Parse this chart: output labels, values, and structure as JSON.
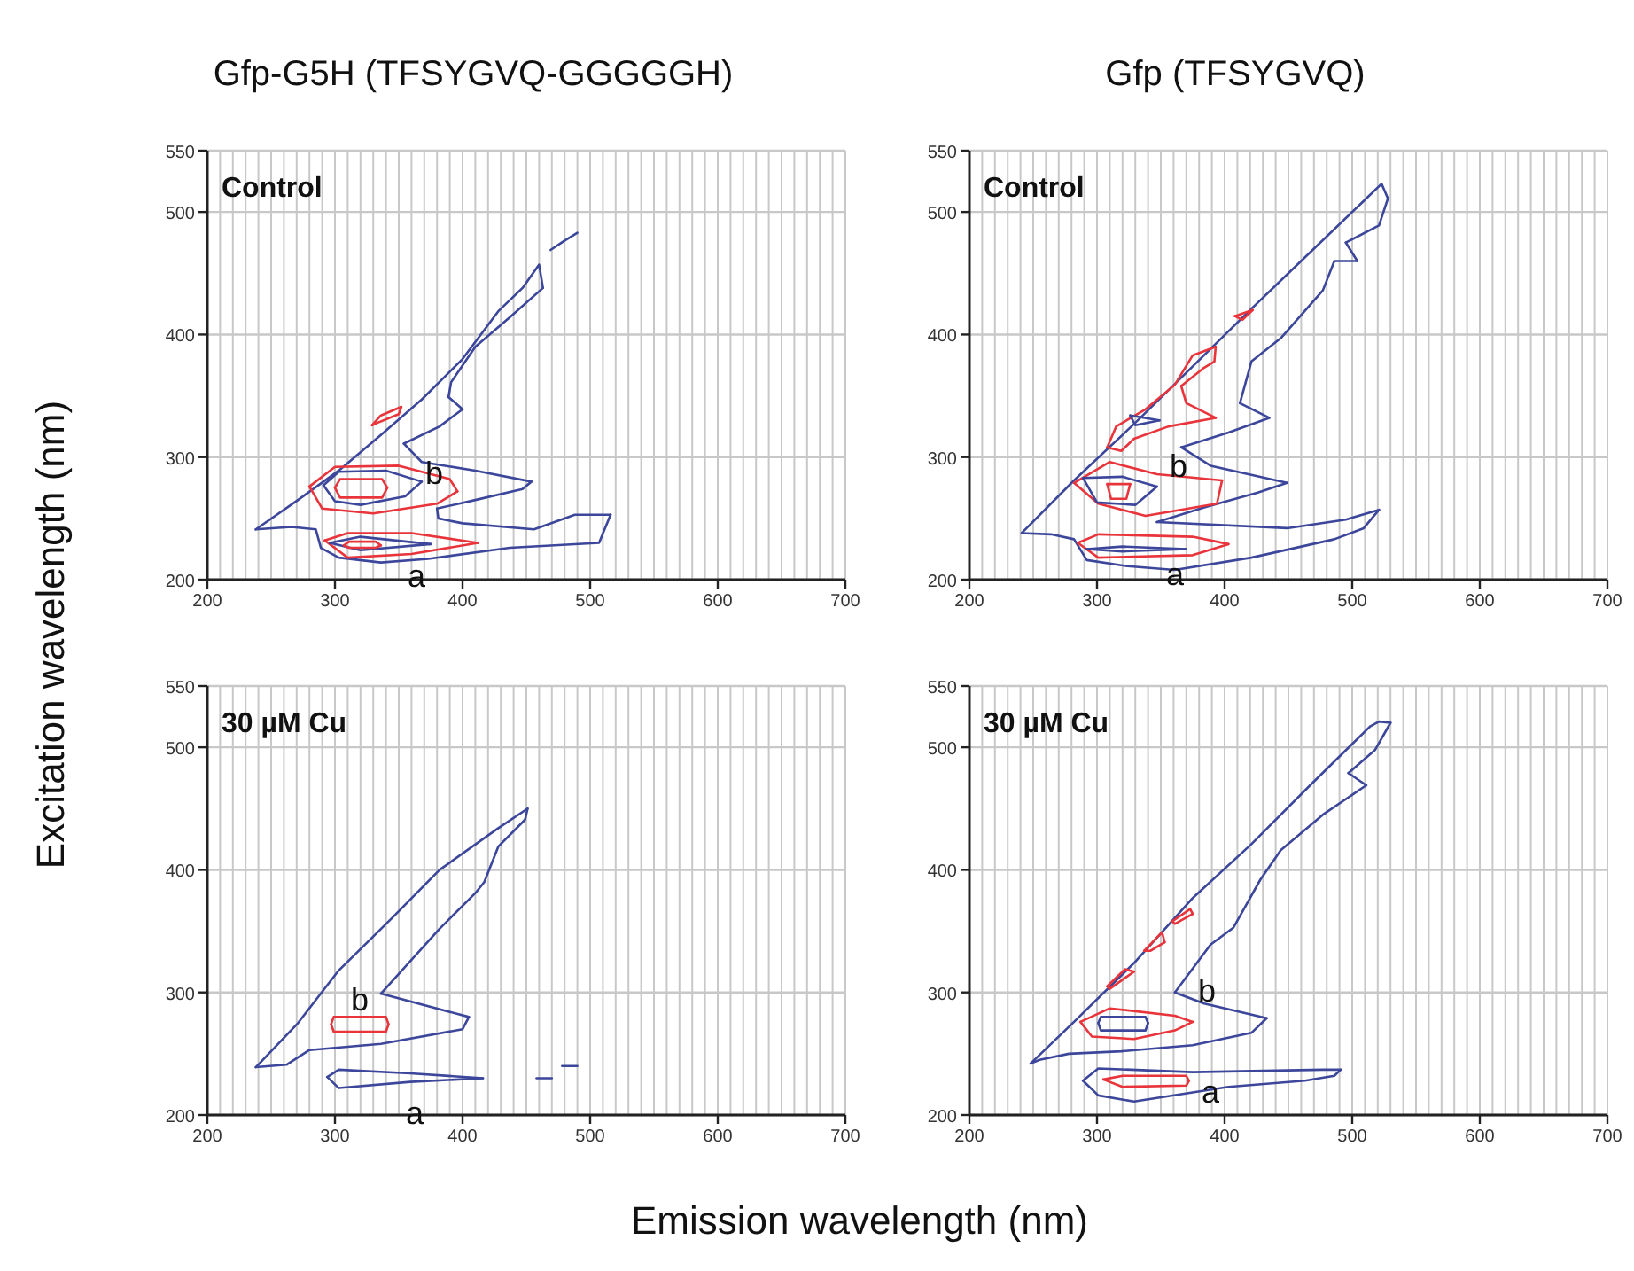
{
  "chart_data": [
    {
      "type": "line",
      "title": "Gfp-G5H (TFSYGVQ-GGGGGH)",
      "ylabel": "Excitation wavelength (nm)",
      "xlim": [
        200,
        700
      ],
      "ylim": [
        200,
        550
      ],
      "grid": true,
      "xticks": [
        200,
        {
          "value": 210,
          "label": null
        },
        {
          "value": 220,
          "label": null
        },
        {
          "value": 230,
          "label": null
        },
        {
          "value": 240,
          "label": null
        },
        {
          "value": 250,
          "label": null
        },
        {
          "value": 260,
          "label": null
        },
        {
          "value": 270,
          "label": null
        },
        {
          "value": 280,
          "label": null
        },
        {
          "value": 290,
          "label": null
        },
        300,
        {
          "value": 310,
          "label": null
        },
        {
          "value": 320,
          "label": null
        },
        {
          "value": 330,
          "label": null
        },
        {
          "value": 340,
          "label": null
        },
        {
          "value": 350,
          "label": null
        },
        {
          "value": 360,
          "label": null
        },
        {
          "value": 370,
          "label": null
        },
        {
          "value": 380,
          "label": null
        },
        {
          "value": 390,
          "label": null
        },
        400,
        {
          "value": 410,
          "label": null
        },
        {
          "value": 420,
          "label": null
        },
        {
          "value": 430,
          "label": null
        },
        {
          "value": 440,
          "label": null
        },
        {
          "value": 450,
          "label": null
        },
        {
          "value": 460,
          "label": null
        },
        {
          "value": 470,
          "label": null
        },
        {
          "value": 480,
          "label": null
        },
        {
          "value": 490,
          "label": null
        },
        500,
        {
          "value": 510,
          "label": null
        },
        {
          "value": 520,
          "label": null
        },
        {
          "value": 530,
          "label": null
        },
        {
          "value": 540,
          "label": null
        },
        {
          "value": 550,
          "label": null
        },
        {
          "value": 560,
          "label": null
        },
        {
          "value": 570,
          "label": null
        },
        {
          "value": 580,
          "label": null
        },
        {
          "value": 590,
          "label": null
        },
        600,
        {
          "value": 610,
          "label": null
        },
        {
          "value": 620,
          "label": null
        },
        {
          "value": 630,
          "label": null
        },
        {
          "value": 640,
          "label": null
        },
        {
          "value": 650,
          "label": null
        },
        {
          "value": 660,
          "label": null
        },
        {
          "value": 670,
          "label": null
        },
        {
          "value": 680,
          "label": null
        },
        {
          "value": 690,
          "label": null
        },
        700
      ],
      "yticks": [
        200,
        300,
        400,
        500,
        550
      ],
      "annotations": [
        "Control",
        "b",
        "a"
      ],
      "series": [
        {
          "color": "#3c469b",
          "x": [
            238,
            271,
            303,
            336,
            368,
            400,
            428,
            447,
            460,
            463
          ],
          "values": [
            241,
            265,
            289,
            318,
            347,
            380,
            419,
            438,
            457,
            438
          ]
        },
        {
          "color": "#3c469b",
          "x": [
            463,
            437,
            410,
            391,
            389
          ],
          "values": [
            438,
            414,
            390,
            361,
            349
          ]
        },
        {
          "color": "#3c469b",
          "x": [
            389,
            400
          ],
          "values": [
            349,
            339
          ]
        },
        {
          "color": "#3c469b",
          "x": [
            400,
            382,
            354
          ],
          "values": [
            339,
            325,
            311
          ]
        },
        {
          "color": "#3c469b",
          "x": [
            354,
            368,
            410,
            454
          ],
          "values": [
            311,
            296,
            289,
            280
          ]
        },
        {
          "color": "#3c469b",
          "x": [
            454,
            447,
            410,
            380
          ],
          "values": [
            280,
            274,
            265,
            258
          ]
        },
        {
          "color": "#3c469b",
          "x": [
            380,
            381,
            400,
            456,
            488,
            516
          ],
          "values": [
            258,
            250,
            246,
            241,
            253,
            253
          ]
        },
        {
          "color": "#3c469b",
          "x": [
            516,
            507,
            437,
            373,
            336,
            303,
            289,
            285,
            266,
            238
          ],
          "values": [
            253,
            230,
            226,
            217,
            214,
            218,
            226,
            241,
            243,
            241
          ]
        },
        {
          "color": "#e8343a",
          "x": [
            329,
            336,
            352
          ],
          "values": [
            326,
            334,
            341
          ]
        },
        {
          "color": "#e8343a",
          "x": [
            352,
            350,
            331,
            329
          ],
          "values": [
            341,
            335,
            327,
            326
          ]
        },
        {
          "color": "#e8343a",
          "x": [
            280,
            300,
            350,
            390,
            396
          ],
          "values": [
            276,
            292,
            293,
            282,
            272
          ]
        },
        {
          "color": "#e8343a",
          "x": [
            396,
            380,
            330,
            290,
            280
          ],
          "values": [
            272,
            262,
            254,
            258,
            276
          ]
        },
        {
          "color": "#3c469b",
          "x": [
            291,
            303,
            340,
            368
          ],
          "values": [
            277,
            288,
            289,
            280
          ]
        },
        {
          "color": "#3c469b",
          "x": [
            368,
            355,
            320,
            300,
            291
          ],
          "values": [
            280,
            268,
            261,
            264,
            277
          ]
        },
        {
          "color": "#e8343a",
          "x": [
            300,
            304,
            337,
            341
          ],
          "values": [
            275,
            282,
            282,
            275
          ]
        },
        {
          "color": "#e8343a",
          "x": [
            341,
            337,
            304,
            300
          ],
          "values": [
            275,
            267,
            267,
            275
          ]
        },
        {
          "color": "#e8343a",
          "x": [
            292,
            310,
            360,
            412
          ],
          "values": [
            232,
            238,
            238,
            230
          ]
        },
        {
          "color": "#e8343a",
          "x": [
            412,
            360,
            310,
            292
          ],
          "values": [
            230,
            221,
            218,
            232
          ]
        },
        {
          "color": "#3c469b",
          "x": [
            296,
            320,
            375
          ],
          "values": [
            230,
            235,
            229
          ]
        },
        {
          "color": "#3c469b",
          "x": [
            375,
            320,
            296
          ],
          "values": [
            229,
            224,
            230
          ]
        },
        {
          "color": "#e8343a",
          "x": [
            307,
            311,
            332,
            336
          ],
          "values": [
            228,
            231,
            231,
            228
          ]
        },
        {
          "color": "#e8343a",
          "x": [
            336,
            332,
            311,
            307
          ],
          "values": [
            228,
            226,
            226,
            228
          ]
        },
        {
          "color": "#3c469b",
          "x": [
            469,
            479,
            490
          ],
          "values": [
            469,
            476,
            483
          ]
        }
      ]
    },
    {
      "type": "line",
      "title": "Gfp (TFSYGVQ)",
      "xlim": [
        200,
        700
      ],
      "ylim": [
        200,
        550
      ],
      "grid": true,
      "xticks": [
        200,
        {
          "value": 210,
          "label": null
        },
        {
          "value": 220,
          "label": null
        },
        {
          "value": 230,
          "label": null
        },
        {
          "value": 240,
          "label": null
        },
        {
          "value": 250,
          "label": null
        },
        {
          "value": 260,
          "label": null
        },
        {
          "value": 270,
          "label": null
        },
        {
          "value": 280,
          "label": null
        },
        {
          "value": 290,
          "label": null
        },
        300,
        {
          "value": 310,
          "label": null
        },
        {
          "value": 320,
          "label": null
        },
        {
          "value": 330,
          "label": null
        },
        {
          "value": 340,
          "label": null
        },
        {
          "value": 350,
          "label": null
        },
        {
          "value": 360,
          "label": null
        },
        {
          "value": 370,
          "label": null
        },
        {
          "value": 380,
          "label": null
        },
        {
          "value": 390,
          "label": null
        },
        400,
        {
          "value": 410,
          "label": null
        },
        {
          "value": 420,
          "label": null
        },
        {
          "value": 430,
          "label": null
        },
        {
          "value": 440,
          "label": null
        },
        {
          "value": 450,
          "label": null
        },
        {
          "value": 460,
          "label": null
        },
        {
          "value": 470,
          "label": null
        },
        {
          "value": 480,
          "label": null
        },
        {
          "value": 490,
          "label": null
        },
        500,
        {
          "value": 510,
          "label": null
        },
        {
          "value": 520,
          "label": null
        },
        {
          "value": 530,
          "label": null
        },
        {
          "value": 540,
          "label": null
        },
        {
          "value": 550,
          "label": null
        },
        {
          "value": 560,
          "label": null
        },
        {
          "value": 570,
          "label": null
        },
        {
          "value": 580,
          "label": null
        },
        {
          "value": 590,
          "label": null
        },
        600,
        {
          "value": 610,
          "label": null
        },
        {
          "value": 620,
          "label": null
        },
        {
          "value": 630,
          "label": null
        },
        {
          "value": 640,
          "label": null
        },
        {
          "value": 650,
          "label": null
        },
        {
          "value": 660,
          "label": null
        },
        {
          "value": 670,
          "label": null
        },
        {
          "value": 680,
          "label": null
        },
        {
          "value": 690,
          "label": null
        },
        700
      ],
      "yticks": [
        200,
        300,
        400,
        500,
        550
      ],
      "annotations": [
        "Control",
        "b",
        "a"
      ],
      "series": [
        {
          "color": "#3c469b",
          "x": [
            241,
            282,
            329,
            375,
            421,
            467,
            509,
            523,
            528
          ],
          "values": [
            238,
            281,
            327,
            374,
            421,
            467,
            509,
            523,
            511
          ]
        },
        {
          "color": "#3c469b",
          "x": [
            528,
            521,
            495
          ],
          "values": [
            511,
            489,
            475
          ]
        },
        {
          "color": "#3c469b",
          "x": [
            495,
            504
          ],
          "values": [
            475,
            460
          ]
        },
        {
          "color": "#3c469b",
          "x": [
            504,
            486,
            477,
            444,
            421,
            412
          ],
          "values": [
            460,
            460,
            436,
            397,
            378,
            344
          ]
        },
        {
          "color": "#3c469b",
          "x": [
            412,
            435
          ],
          "values": [
            344,
            332
          ]
        },
        {
          "color": "#3c469b",
          "x": [
            435,
            403,
            366
          ],
          "values": [
            332,
            320,
            308
          ]
        },
        {
          "color": "#3c469b",
          "x": [
            366,
            389,
            449
          ],
          "values": [
            308,
            293,
            279
          ]
        },
        {
          "color": "#3c469b",
          "x": [
            449,
            426,
            384,
            347
          ],
          "values": [
            279,
            271,
            259,
            247
          ]
        },
        {
          "color": "#3c469b",
          "x": [
            347,
            449,
            495,
            521
          ],
          "values": [
            247,
            242,
            249,
            257
          ]
        },
        {
          "color": "#3c469b",
          "x": [
            521,
            509,
            486,
            421,
            361,
            324,
            292,
            282,
            264,
            241
          ],
          "values": [
            257,
            242,
            233,
            218,
            208,
            211,
            216,
            233,
            237,
            238
          ]
        },
        {
          "color": "#e8343a",
          "x": [
            282,
            310,
            347,
            398
          ],
          "values": [
            279,
            296,
            286,
            281
          ]
        },
        {
          "color": "#e8343a",
          "x": [
            398,
            394,
            338,
            301,
            282
          ],
          "values": [
            281,
            262,
            252,
            262,
            279
          ]
        },
        {
          "color": "#3c469b",
          "x": [
            289,
            320,
            347
          ],
          "values": [
            283,
            284,
            276
          ]
        },
        {
          "color": "#3c469b",
          "x": [
            347,
            330,
            300,
            289
          ],
          "values": [
            276,
            261,
            263,
            283
          ]
        },
        {
          "color": "#e8343a",
          "x": [
            308,
            326
          ],
          "values": [
            278,
            278
          ]
        },
        {
          "color": "#e8343a",
          "x": [
            326,
            323,
            311,
            308
          ],
          "values": [
            278,
            266,
            266,
            278
          ]
        },
        {
          "color": "#e8343a",
          "x": [
            308,
            315,
            338,
            361,
            375,
            393
          ],
          "values": [
            308,
            325,
            339,
            359,
            383,
            390
          ]
        },
        {
          "color": "#e8343a",
          "x": [
            393,
            392,
            384,
            366
          ],
          "values": [
            390,
            378,
            373,
            358
          ]
        },
        {
          "color": "#e8343a",
          "x": [
            366,
            370,
            393
          ],
          "values": [
            358,
            344,
            332
          ]
        },
        {
          "color": "#e8343a",
          "x": [
            393,
            356,
            329,
            319,
            308
          ],
          "values": [
            332,
            325,
            315,
            305,
            308
          ]
        },
        {
          "color": "#3c469b",
          "x": [
            326,
            349
          ],
          "values": [
            334,
            330
          ]
        },
        {
          "color": "#3c469b",
          "x": [
            349,
            330,
            326
          ],
          "values": [
            330,
            326,
            334
          ]
        },
        {
          "color": "#e8343a",
          "x": [
            408,
            422
          ],
          "values": [
            415,
            420
          ]
        },
        {
          "color": "#e8343a",
          "x": [
            422,
            414,
            408
          ],
          "values": [
            420,
            412,
            415
          ]
        },
        {
          "color": "#e8343a",
          "x": [
            285,
            301,
            375,
            403
          ],
          "values": [
            230,
            237,
            235,
            229
          ]
        },
        {
          "color": "#e8343a",
          "x": [
            403,
            375,
            301,
            285
          ],
          "values": [
            229,
            220,
            218,
            230
          ]
        },
        {
          "color": "#3c469b",
          "x": [
            292,
            320,
            370
          ],
          "values": [
            225,
            227,
            225
          ]
        },
        {
          "color": "#3c469b",
          "x": [
            370,
            320,
            292
          ],
          "values": [
            225,
            223,
            225
          ]
        }
      ]
    },
    {
      "type": "line",
      "xlabel": "Emission wavelength (nm)",
      "xlim": [
        200,
        700
      ],
      "ylim": [
        200,
        550
      ],
      "grid": true,
      "xticks": [
        200,
        {
          "value": 210,
          "label": null
        },
        {
          "value": 220,
          "label": null
        },
        {
          "value": 230,
          "label": null
        },
        {
          "value": 240,
          "label": null
        },
        {
          "value": 250,
          "label": null
        },
        {
          "value": 260,
          "label": null
        },
        {
          "value": 270,
          "label": null
        },
        {
          "value": 280,
          "label": null
        },
        {
          "value": 290,
          "label": null
        },
        300,
        {
          "value": 310,
          "label": null
        },
        {
          "value": 320,
          "label": null
        },
        {
          "value": 330,
          "label": null
        },
        {
          "value": 340,
          "label": null
        },
        {
          "value": 350,
          "label": null
        },
        {
          "value": 360,
          "label": null
        },
        {
          "value": 370,
          "label": null
        },
        {
          "value": 380,
          "label": null
        },
        {
          "value": 390,
          "label": null
        },
        400,
        {
          "value": 410,
          "label": null
        },
        {
          "value": 420,
          "label": null
        },
        {
          "value": 430,
          "label": null
        },
        {
          "value": 440,
          "label": null
        },
        {
          "value": 450,
          "label": null
        },
        {
          "value": 460,
          "label": null
        },
        {
          "value": 470,
          "label": null
        },
        {
          "value": 480,
          "label": null
        },
        {
          "value": 490,
          "label": null
        },
        500,
        {
          "value": 510,
          "label": null
        },
        {
          "value": 520,
          "label": null
        },
        {
          "value": 530,
          "label": null
        },
        {
          "value": 540,
          "label": null
        },
        {
          "value": 550,
          "label": null
        },
        {
          "value": 560,
          "label": null
        },
        {
          "value": 570,
          "label": null
        },
        {
          "value": 580,
          "label": null
        },
        {
          "value": 590,
          "label": null
        },
        600,
        {
          "value": 610,
          "label": null
        },
        {
          "value": 620,
          "label": null
        },
        {
          "value": 630,
          "label": null
        },
        {
          "value": 640,
          "label": null
        },
        {
          "value": 650,
          "label": null
        },
        {
          "value": 660,
          "label": null
        },
        {
          "value": 670,
          "label": null
        },
        {
          "value": 680,
          "label": null
        },
        {
          "value": 690,
          "label": null
        },
        700
      ],
      "yticks": [
        200,
        300,
        400,
        500,
        550
      ],
      "annotations": [
        "30 µM Cu",
        "b",
        "a"
      ],
      "series": [
        {
          "color": "#3c469b",
          "x": [
            238,
            271,
            303,
            345,
            382,
            428,
            451
          ],
          "values": [
            239,
            275,
            318,
            361,
            400,
            434,
            450
          ]
        },
        {
          "color": "#3c469b",
          "x": [
            451,
            449,
            428,
            417,
            410,
            382,
            336
          ],
          "values": [
            450,
            441,
            419,
            390,
            381,
            352,
            299
          ]
        },
        {
          "color": "#3c469b",
          "x": [
            336,
            405
          ],
          "values": [
            299,
            280
          ]
        },
        {
          "color": "#3c469b",
          "x": [
            405,
            400,
            336,
            280,
            262,
            238
          ],
          "values": [
            280,
            270,
            258,
            253,
            241,
            239
          ]
        },
        {
          "color": "#e8343a",
          "x": [
            297,
            299,
            340,
            342
          ],
          "values": [
            274,
            280,
            280,
            274
          ]
        },
        {
          "color": "#e8343a",
          "x": [
            342,
            340,
            299,
            297
          ],
          "values": [
            274,
            268,
            268,
            274
          ]
        },
        {
          "color": "#3c469b",
          "x": [
            294,
            303,
            359,
            416
          ],
          "values": [
            231,
            237,
            234,
            230
          ]
        },
        {
          "color": "#3c469b",
          "x": [
            416,
            359,
            303,
            294
          ],
          "values": [
            230,
            227,
            222,
            231
          ]
        },
        {
          "color": "#3c469b",
          "x": [
            458,
            470
          ],
          "values": [
            230,
            230
          ]
        },
        {
          "color": "#3c469b",
          "x": [
            478,
            490
          ],
          "values": [
            240,
            240
          ]
        }
      ]
    },
    {
      "type": "line",
      "xlim": [
        200,
        700
      ],
      "ylim": [
        200,
        550
      ],
      "grid": true,
      "xticks": [
        200,
        {
          "value": 210,
          "label": null
        },
        {
          "value": 220,
          "label": null
        },
        {
          "value": 230,
          "label": null
        },
        {
          "value": 240,
          "label": null
        },
        {
          "value": 250,
          "label": null
        },
        {
          "value": 260,
          "label": null
        },
        {
          "value": 270,
          "label": null
        },
        {
          "value": 280,
          "label": null
        },
        {
          "value": 290,
          "label": null
        },
        300,
        {
          "value": 310,
          "label": null
        },
        {
          "value": 320,
          "label": null
        },
        {
          "value": 330,
          "label": null
        },
        {
          "value": 340,
          "label": null
        },
        {
          "value": 350,
          "label": null
        },
        {
          "value": 360,
          "label": null
        },
        {
          "value": 370,
          "label": null
        },
        {
          "value": 380,
          "label": null
        },
        {
          "value": 390,
          "label": null
        },
        400,
        {
          "value": 410,
          "label": null
        },
        {
          "value": 420,
          "label": null
        },
        {
          "value": 430,
          "label": null
        },
        {
          "value": 440,
          "label": null
        },
        {
          "value": 450,
          "label": null
        },
        {
          "value": 460,
          "label": null
        },
        {
          "value": 470,
          "label": null
        },
        {
          "value": 480,
          "label": null
        },
        {
          "value": 490,
          "label": null
        },
        500,
        {
          "value": 510,
          "label": null
        },
        {
          "value": 520,
          "label": null
        },
        {
          "value": 530,
          "label": null
        },
        {
          "value": 540,
          "label": null
        },
        {
          "value": 550,
          "label": null
        },
        {
          "value": 560,
          "label": null
        },
        {
          "value": 570,
          "label": null
        },
        {
          "value": 580,
          "label": null
        },
        {
          "value": 590,
          "label": null
        },
        600,
        {
          "value": 610,
          "label": null
        },
        {
          "value": 620,
          "label": null
        },
        {
          "value": 630,
          "label": null
        },
        {
          "value": 640,
          "label": null
        },
        {
          "value": 650,
          "label": null
        },
        {
          "value": 660,
          "label": null
        },
        {
          "value": 670,
          "label": null
        },
        {
          "value": 680,
          "label": null
        },
        {
          "value": 690,
          "label": null
        },
        700
      ],
      "yticks": [
        200,
        300,
        400,
        500,
        550
      ],
      "annotations": [
        "30 µM Cu",
        "b",
        "a"
      ],
      "series": [
        {
          "color": "#3c469b",
          "x": [
            248,
            282,
            329,
            375,
            421,
            467,
            514,
            521,
            530
          ],
          "values": [
            242,
            276,
            324,
            377,
            421,
            469,
            517,
            521,
            520
          ]
        },
        {
          "color": "#3c469b",
          "x": [
            530,
            518,
            497
          ],
          "values": [
            520,
            498,
            479
          ]
        },
        {
          "color": "#3c469b",
          "x": [
            497,
            511
          ],
          "values": [
            479,
            469
          ]
        },
        {
          "color": "#3c469b",
          "x": [
            511,
            477,
            444,
            428,
            407,
            389,
            361
          ],
          "values": [
            469,
            445,
            416,
            392,
            353,
            339,
            300
          ]
        },
        {
          "color": "#3c469b",
          "x": [
            361,
            384,
            433
          ],
          "values": [
            300,
            291,
            279
          ]
        },
        {
          "color": "#3c469b",
          "x": [
            433,
            421,
            375,
            319,
            278,
            255,
            248
          ],
          "values": [
            279,
            267,
            257,
            252,
            250,
            245,
            242
          ]
        },
        {
          "color": "#3c469b",
          "x": [
            289,
            301,
            375,
            477,
            491
          ],
          "values": [
            228,
            238,
            235,
            237,
            237
          ]
        },
        {
          "color": "#3c469b",
          "x": [
            491,
            486,
            463,
            403,
            329,
            301,
            289
          ],
          "values": [
            237,
            232,
            228,
            223,
            211,
            216,
            228
          ]
        },
        {
          "color": "#e8343a",
          "x": [
            305,
            320,
            370,
            372
          ],
          "values": [
            229,
            232,
            232,
            228
          ]
        },
        {
          "color": "#e8343a",
          "x": [
            372,
            370,
            320,
            305
          ],
          "values": [
            228,
            224,
            223,
            229
          ]
        },
        {
          "color": "#e8343a",
          "x": [
            287,
            310,
            361,
            375
          ],
          "values": [
            276,
            287,
            281,
            276
          ]
        },
        {
          "color": "#e8343a",
          "x": [
            375,
            361,
            329,
            296,
            287
          ],
          "values": [
            276,
            269,
            262,
            264,
            276
          ]
        },
        {
          "color": "#3c469b",
          "x": [
            301,
            303,
            338,
            340
          ],
          "values": [
            275,
            280,
            280,
            275
          ]
        },
        {
          "color": "#3c469b",
          "x": [
            340,
            338,
            303,
            301
          ],
          "values": [
            275,
            269,
            269,
            275
          ]
        },
        {
          "color": "#e8343a",
          "x": [
            308,
            322,
            329
          ],
          "values": [
            305,
            319,
            317
          ]
        },
        {
          "color": "#e8343a",
          "x": [
            329,
            310,
            308
          ],
          "values": [
            317,
            303,
            305
          ]
        },
        {
          "color": "#e8343a",
          "x": [
            337,
            351,
            353
          ],
          "values": [
            334,
            349,
            341
          ]
        },
        {
          "color": "#e8343a",
          "x": [
            353,
            342,
            337
          ],
          "values": [
            341,
            334,
            334
          ]
        },
        {
          "color": "#e8343a",
          "x": [
            359,
            373,
            375
          ],
          "values": [
            358,
            368,
            364
          ]
        },
        {
          "color": "#e8343a",
          "x": [
            375,
            361,
            359
          ],
          "values": [
            364,
            356,
            358
          ]
        }
      ]
    }
  ]
}
